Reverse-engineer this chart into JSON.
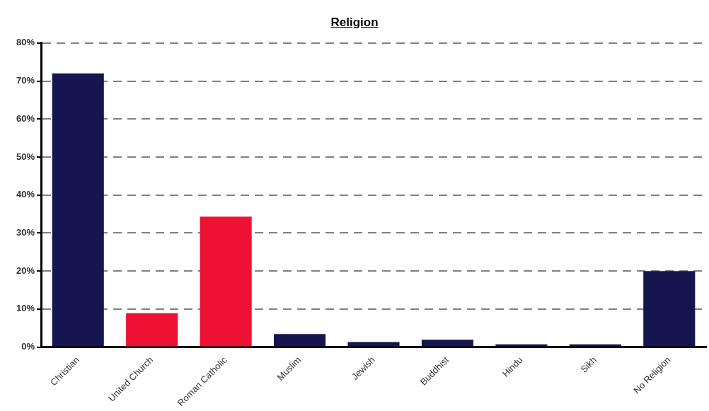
{
  "chart_data": {
    "type": "bar",
    "title": "Religion",
    "categories": [
      "Christian",
      "United Church",
      "Roman Catholic",
      "Muslim",
      "Jewish",
      "Buddhist",
      "Hindu",
      "Sikh",
      "No Religion"
    ],
    "values": [
      72,
      8.9,
      34.3,
      3.4,
      1.3,
      1.9,
      0.7,
      0.7,
      20
    ],
    "colors": [
      "#16154f",
      "#ee1133",
      "#ee1133",
      "#16154f",
      "#16154f",
      "#16154f",
      "#16154f",
      "#16154f",
      "#16154f"
    ],
    "ylim": [
      0,
      80
    ],
    "yticks": [
      {
        "value": 0,
        "label": "0%"
      },
      {
        "value": 10,
        "label": "10%"
      },
      {
        "value": 20,
        "label": "20%"
      },
      {
        "value": 30,
        "label": "30%"
      },
      {
        "value": 40,
        "label": "40%"
      },
      {
        "value": 50,
        "label": "50%"
      },
      {
        "value": 60,
        "label": "60%"
      },
      {
        "value": 70,
        "label": "70%"
      },
      {
        "value": 80,
        "label": "80%"
      }
    ],
    "grid": "y",
    "legend": false
  }
}
